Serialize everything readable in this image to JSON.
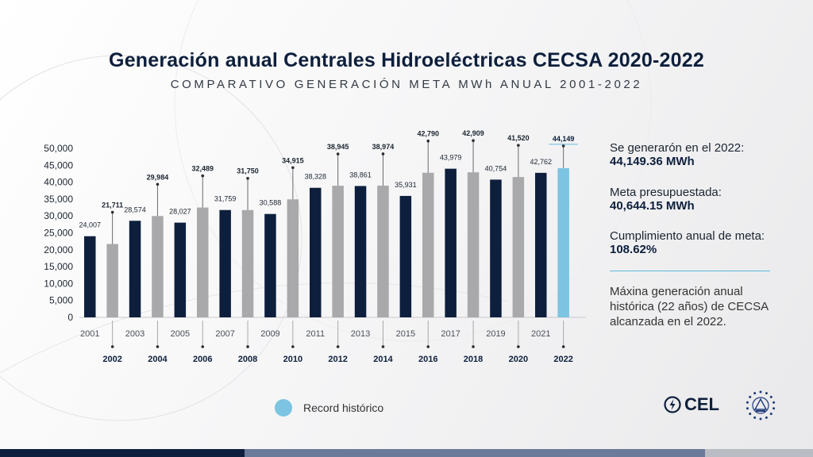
{
  "title": "Generación anual Centrales Hidroeléctricas CECSA 2020-2022",
  "subtitle": "COMPARATIVO GENERACIÓN META MWh ANUAL 2001-2022",
  "colors": {
    "dark": "#0d1f3c",
    "gray": "#a9a9ab",
    "record": "#7cc4e2"
  },
  "chart_data": {
    "type": "bar",
    "categories": [
      "2001",
      "2002",
      "2003",
      "2004",
      "2005",
      "2006",
      "2007",
      "2008",
      "2009",
      "2010",
      "2011",
      "2012",
      "2013",
      "2014",
      "2015",
      "2016",
      "2017",
      "2018",
      "2019",
      "2020",
      "2021",
      "2022"
    ],
    "values": [
      24007,
      21711,
      28574,
      29984,
      28027,
      32489,
      31759,
      31750,
      30588,
      34915,
      38328,
      38945,
      38861,
      38974,
      35931,
      42790,
      43979,
      42909,
      40754,
      41520,
      42762,
      44149
    ],
    "value_labels": [
      "24,007",
      "21,711",
      "28,574",
      "29,984",
      "28,027",
      "32,489",
      "31,759",
      "31,750",
      "30,588",
      "34,915",
      "38,328",
      "38,945",
      "38,861",
      "38,974",
      "35,931",
      "42,790",
      "43,979",
      "42,909",
      "40,754",
      "41,520",
      "42,762",
      "44,149"
    ],
    "bar_colors": [
      "dark",
      "gray",
      "dark",
      "gray",
      "dark",
      "gray",
      "dark",
      "gray",
      "dark",
      "gray",
      "dark",
      "gray",
      "dark",
      "gray",
      "dark",
      "gray",
      "dark",
      "gray",
      "dark",
      "gray",
      "dark",
      "record"
    ],
    "bold_labels": [
      1,
      3,
      5,
      7,
      9,
      11,
      13,
      15,
      17,
      19,
      21
    ],
    "yticks": [
      "0",
      "5,000",
      "10,000",
      "15,000",
      "20,000",
      "25,000",
      "30,000",
      "35,000",
      "40,000",
      "45,000",
      "50,000"
    ],
    "ylim": [
      0,
      50000
    ],
    "xlabel": "",
    "ylabel": "",
    "legend": {
      "position": "bottom-left",
      "entries": [
        {
          "name": "Record histórico",
          "color": "record"
        }
      ]
    },
    "grid": false
  },
  "panel": {
    "gen_label": "Se generarón en el 2022:",
    "gen_value": "44,149.36 MWh",
    "meta_label": "Meta presupuestada:",
    "meta_value": "40,644.15 MWh",
    "cumpl_label": "Cumplimiento anual de meta:",
    "cumpl_value": "108.62%",
    "note": "Máxina generación anual histórica (22 años) de CECSA alcanzada en el 2022."
  },
  "legend_label": "Record histórico",
  "logo": {
    "text": "CEL",
    "icon": "lightning-bolt-icon",
    "seal_icon": "el-salvador-seal-icon"
  }
}
